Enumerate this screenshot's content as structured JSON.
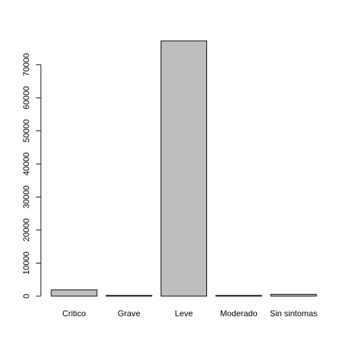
{
  "chart_data": {
    "type": "bar",
    "title": "",
    "xlabel": "",
    "ylabel": "",
    "categories": [
      "Critico",
      "Grave",
      "Leve",
      "Moderado",
      "Sin sintomas"
    ],
    "values": [
      1900,
      100,
      77200,
      120,
      550
    ],
    "ylim": [
      0,
      77200
    ],
    "yticks": [
      0,
      10000,
      20000,
      30000,
      40000,
      50000,
      60000,
      70000
    ],
    "grid": false,
    "legend": "none",
    "colors": {
      "bar_fill": "#bebebe",
      "bar_stroke": "#000000",
      "axis": "#000000",
      "background": "#ffffff"
    }
  }
}
